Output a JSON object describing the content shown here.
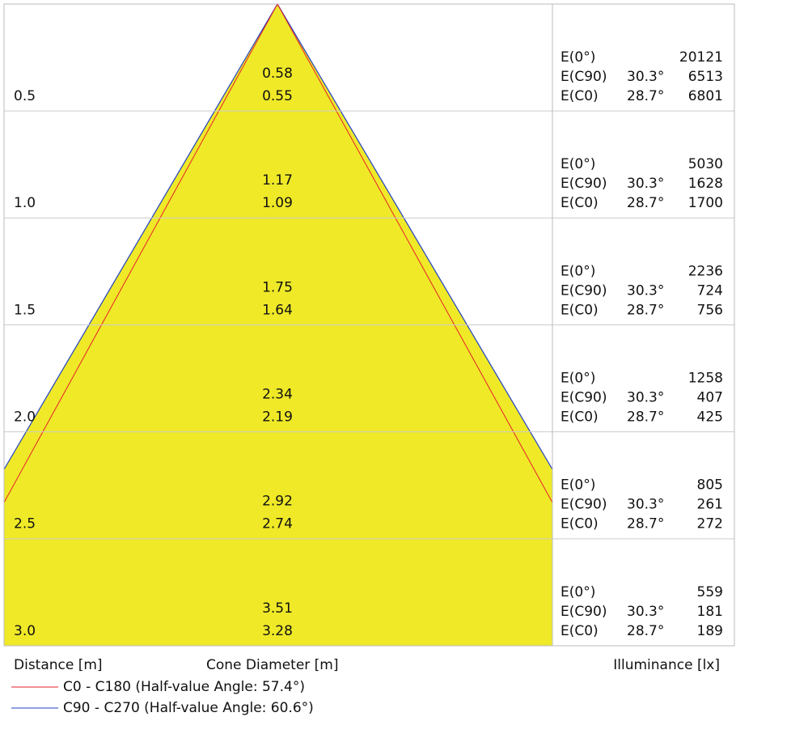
{
  "rows": [
    {
      "distance": "0.5",
      "diameter_c90": "0.58",
      "diameter_c0": "0.55",
      "illuminance": [
        {
          "label": "E(0°)",
          "value": "20121"
        },
        {
          "label": "E(C90)",
          "angle": "30.3°",
          "value": "6513"
        },
        {
          "label": "E(C0)",
          "angle": "28.7°",
          "value": "6801"
        }
      ]
    },
    {
      "distance": "1.0",
      "diameter_c90": "1.17",
      "diameter_c0": "1.09",
      "illuminance": [
        {
          "label": "E(0°)",
          "value": "5030"
        },
        {
          "label": "E(C90)",
          "angle": "30.3°",
          "value": "1628"
        },
        {
          "label": "E(C0)",
          "angle": "28.7°",
          "value": "1700"
        }
      ]
    },
    {
      "distance": "1.5",
      "diameter_c90": "1.75",
      "diameter_c0": "1.64",
      "illuminance": [
        {
          "label": "E(0°)",
          "value": "2236"
        },
        {
          "label": "E(C90)",
          "angle": "30.3°",
          "value": "724"
        },
        {
          "label": "E(C0)",
          "angle": "28.7°",
          "value": "756"
        }
      ]
    },
    {
      "distance": "2.0",
      "diameter_c90": "2.34",
      "diameter_c0": "2.19",
      "illuminance": [
        {
          "label": "E(0°)",
          "value": "1258"
        },
        {
          "label": "E(C90)",
          "angle": "30.3°",
          "value": "407"
        },
        {
          "label": "E(C0)",
          "angle": "28.7°",
          "value": "425"
        }
      ]
    },
    {
      "distance": "2.5",
      "diameter_c90": "2.92",
      "diameter_c0": "2.74",
      "illuminance": [
        {
          "label": "E(0°)",
          "value": "805"
        },
        {
          "label": "E(C90)",
          "angle": "30.3°",
          "value": "261"
        },
        {
          "label": "E(C0)",
          "angle": "28.7°",
          "value": "272"
        }
      ]
    },
    {
      "distance": "3.0",
      "diameter_c90": "3.51",
      "diameter_c0": "3.28",
      "illuminance": [
        {
          "label": "E(0°)",
          "value": "559"
        },
        {
          "label": "E(C90)",
          "angle": "30.3°",
          "value": "181"
        },
        {
          "label": "E(C0)",
          "angle": "28.7°",
          "value": "189"
        }
      ]
    }
  ],
  "footer": {
    "distance_label": "Distance [m]",
    "diameter_label": "Cone Diameter [m]",
    "illuminance_label": "Illuminance [lx]"
  },
  "legend": [
    {
      "label": "C0 - C180 (Half-value Angle: 57.4°)",
      "color": "#e8202a"
    },
    {
      "label": "C90 - C270 (Half-value Angle: 60.6°)",
      "color": "#2040c0"
    }
  ]
}
